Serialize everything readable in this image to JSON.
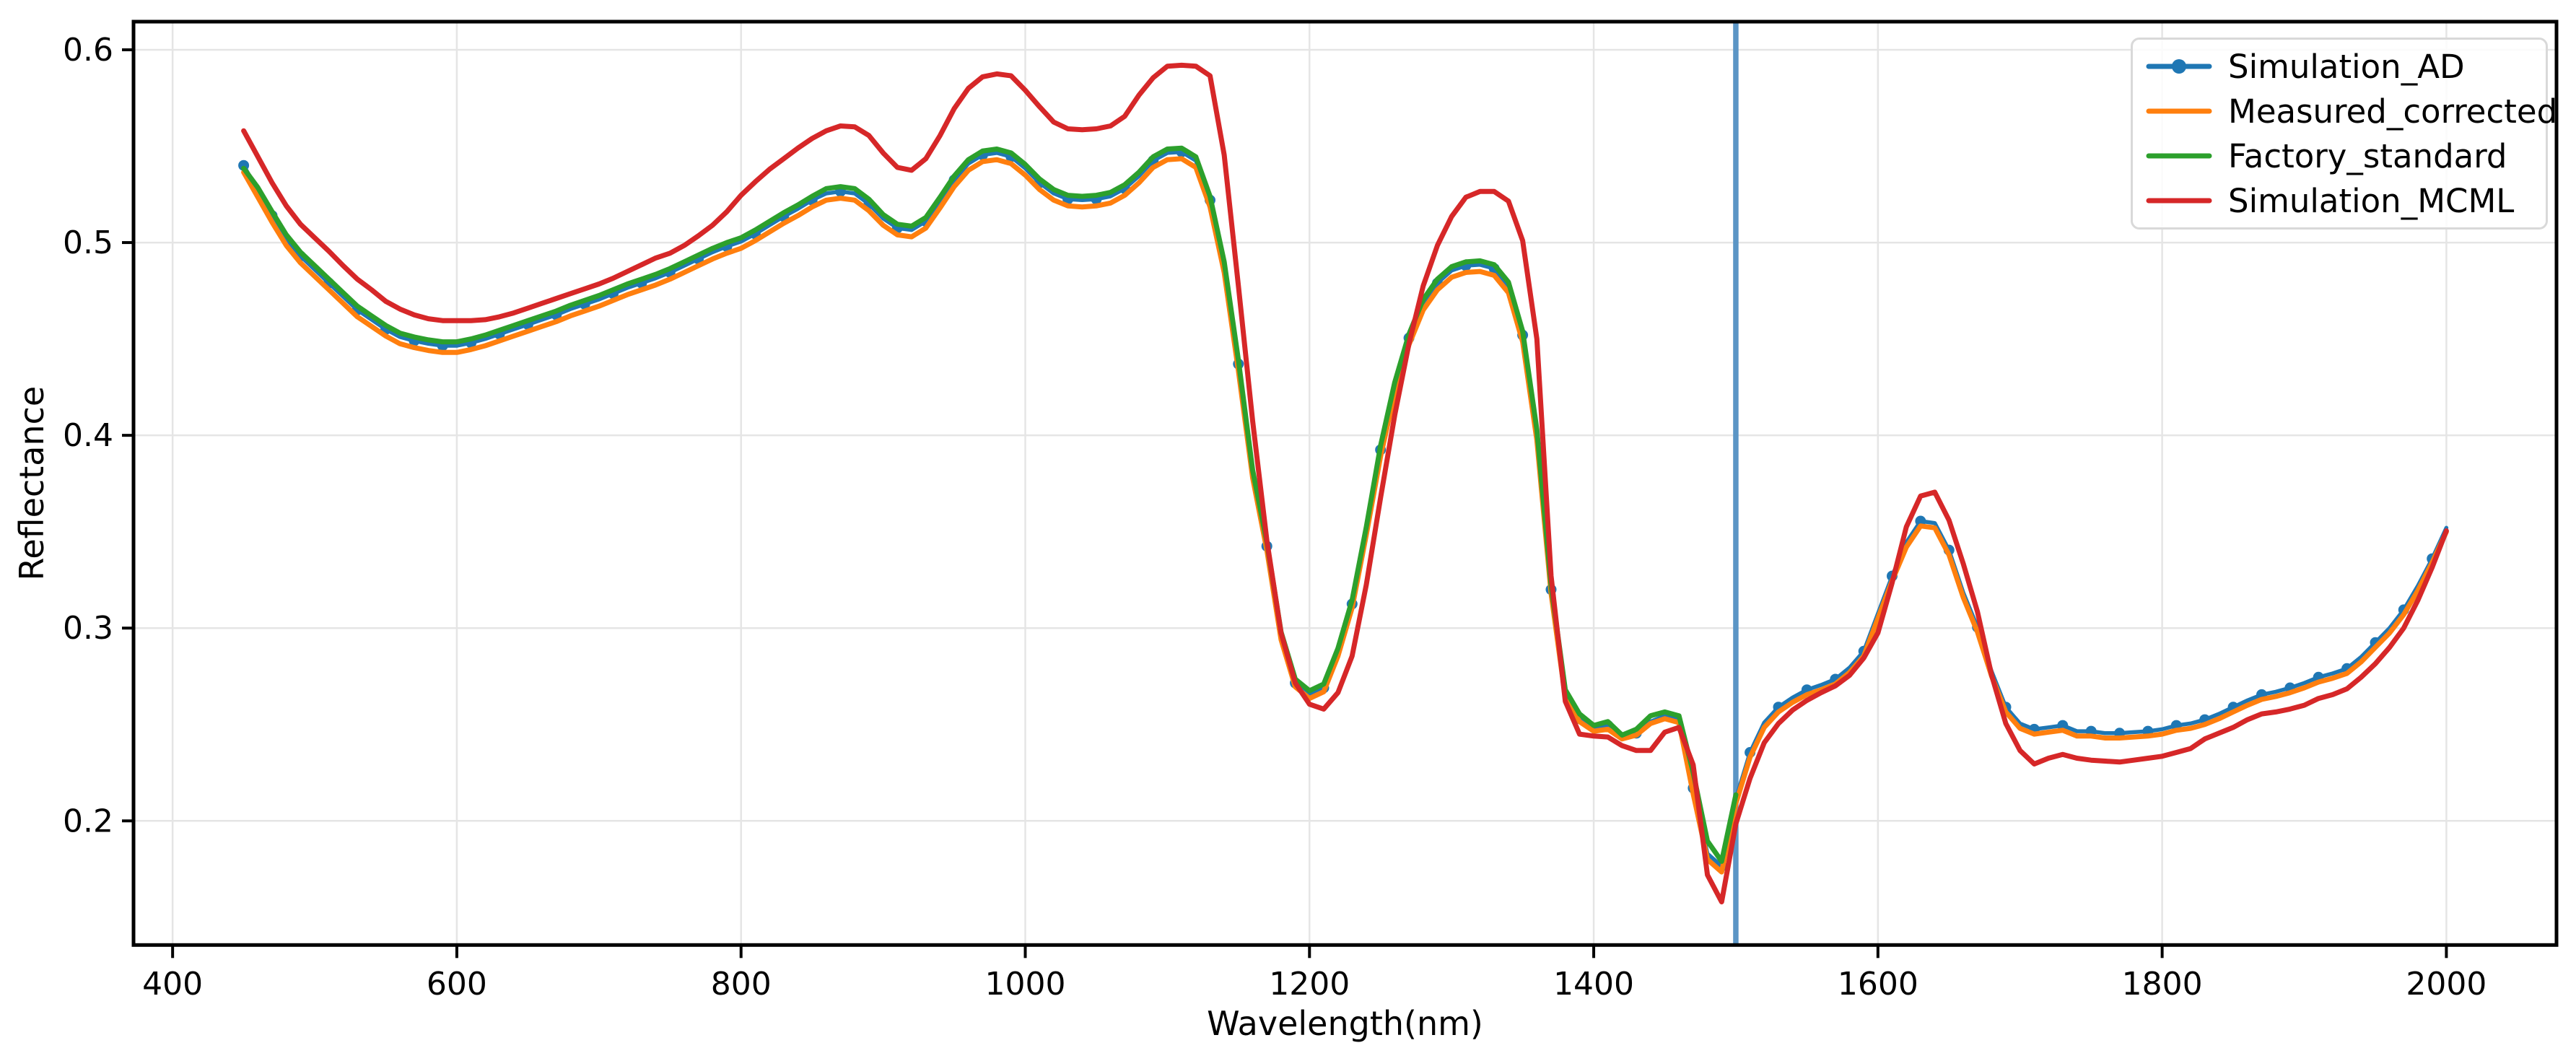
{
  "figure": {
    "background": "#ffffff"
  },
  "axes": {
    "xlabel": "Wavelength(nm)",
    "ylabel": "Reflectance",
    "x_ticks": [
      400,
      600,
      800,
      1000,
      1200,
      1400,
      1600,
      1800,
      2000
    ],
    "y_ticks": [
      "0.2",
      "0.3",
      "0.4",
      "0.5",
      "0.6"
    ],
    "xlim": [
      372.5,
      2077.5
    ],
    "ylim": [
      0.1356,
      0.6146
    ],
    "grid": true,
    "grid_color": "#e5e5e5",
    "spine_color": "#000000",
    "tick_color": "#000000"
  },
  "annotations": {
    "vline": {
      "x": 1500,
      "color": "#5b95c5"
    }
  },
  "chart_data": {
    "type": "line",
    "title": "",
    "xlabel": "Wavelength(nm)",
    "ylabel": "Reflectance",
    "legend_position": "upper right",
    "x": [
      450,
      460,
      470,
      480,
      490,
      500,
      510,
      520,
      530,
      540,
      550,
      560,
      570,
      580,
      590,
      600,
      610,
      620,
      630,
      640,
      650,
      660,
      670,
      680,
      690,
      700,
      710,
      720,
      730,
      740,
      750,
      760,
      770,
      780,
      790,
      800,
      810,
      820,
      830,
      840,
      850,
      860,
      870,
      880,
      890,
      900,
      910,
      920,
      930,
      940,
      950,
      960,
      970,
      980,
      990,
      1000,
      1010,
      1020,
      1030,
      1040,
      1050,
      1060,
      1070,
      1080,
      1090,
      1100,
      1110,
      1120,
      1130,
      1140,
      1150,
      1160,
      1170,
      1180,
      1190,
      1200,
      1210,
      1220,
      1230,
      1240,
      1250,
      1260,
      1270,
      1280,
      1290,
      1300,
      1310,
      1320,
      1330,
      1340,
      1350,
      1360,
      1370,
      1380,
      1390,
      1400,
      1410,
      1420,
      1430,
      1440,
      1450,
      1460,
      1470,
      1480,
      1490,
      1500,
      1510,
      1520,
      1530,
      1540,
      1550,
      1560,
      1570,
      1580,
      1590,
      1600,
      1610,
      1620,
      1630,
      1640,
      1650,
      1660,
      1670,
      1680,
      1690,
      1700,
      1710,
      1720,
      1730,
      1740,
      1750,
      1760,
      1770,
      1780,
      1790,
      1800,
      1810,
      1820,
      1830,
      1840,
      1850,
      1860,
      1870,
      1880,
      1890,
      1900,
      1910,
      1920,
      1930,
      1940,
      1950,
      1960,
      1970,
      1980,
      1990,
      2000
    ],
    "series": [
      {
        "name": "Simulation_AD",
        "color": "#1f77b4",
        "marker": "circle",
        "marker_every_points": 2,
        "values": [
          0.54,
          0.527,
          0.514,
          0.502,
          0.493,
          0.486,
          0.479,
          0.472,
          0.465,
          0.46,
          0.455,
          0.451,
          0.449,
          0.4475,
          0.4465,
          0.4465,
          0.448,
          0.45,
          0.4525,
          0.455,
          0.4575,
          0.46,
          0.4625,
          0.4655,
          0.468,
          0.4705,
          0.4735,
          0.4765,
          0.479,
          0.4815,
          0.4845,
          0.488,
          0.4915,
          0.495,
          0.498,
          0.5005,
          0.5045,
          0.509,
          0.5135,
          0.5175,
          0.522,
          0.5255,
          0.5265,
          0.5255,
          0.52,
          0.5125,
          0.5075,
          0.5065,
          0.511,
          0.5215,
          0.5325,
          0.541,
          0.5455,
          0.5465,
          0.5445,
          0.5385,
          0.531,
          0.5255,
          0.5225,
          0.522,
          0.5225,
          0.524,
          0.528,
          0.5345,
          0.5425,
          0.5465,
          0.547,
          0.5425,
          0.522,
          0.488,
          0.437,
          0.38,
          0.3425,
          0.296,
          0.2715,
          0.2655,
          0.269,
          0.2875,
          0.3125,
          0.3505,
          0.3925,
          0.4255,
          0.4505,
          0.4685,
          0.479,
          0.4855,
          0.488,
          0.4885,
          0.4865,
          0.4775,
          0.452,
          0.401,
          0.32,
          0.266,
          0.253,
          0.2475,
          0.2495,
          0.2435,
          0.2455,
          0.2515,
          0.2545,
          0.2525,
          0.217,
          0.183,
          0.1765,
          0.2115,
          0.2355,
          0.251,
          0.259,
          0.264,
          0.268,
          0.2705,
          0.2735,
          0.2795,
          0.288,
          0.3075,
          0.327,
          0.3445,
          0.3555,
          0.3545,
          0.3405,
          0.3185,
          0.3005,
          0.2775,
          0.259,
          0.2505,
          0.2475,
          0.2485,
          0.2495,
          0.2465,
          0.2465,
          0.2455,
          0.2455,
          0.246,
          0.2465,
          0.2475,
          0.2495,
          0.2505,
          0.2525,
          0.2555,
          0.259,
          0.2625,
          0.2655,
          0.267,
          0.269,
          0.2715,
          0.2745,
          0.2765,
          0.279,
          0.285,
          0.2925,
          0.3,
          0.3095,
          0.322,
          0.336,
          0.352
        ]
      },
      {
        "name": "Measured_corrected",
        "color": "#ff7f0e",
        "marker": "none",
        "values": [
          0.5365,
          0.5235,
          0.5105,
          0.4985,
          0.4895,
          0.4825,
          0.4755,
          0.4685,
          0.4615,
          0.4565,
          0.4515,
          0.4475,
          0.4455,
          0.444,
          0.443,
          0.443,
          0.4445,
          0.4465,
          0.449,
          0.4515,
          0.454,
          0.4565,
          0.459,
          0.462,
          0.4645,
          0.467,
          0.47,
          0.473,
          0.4755,
          0.478,
          0.481,
          0.4845,
          0.488,
          0.4915,
          0.4945,
          0.497,
          0.501,
          0.5055,
          0.51,
          0.514,
          0.5185,
          0.522,
          0.523,
          0.522,
          0.5165,
          0.509,
          0.504,
          0.503,
          0.5075,
          0.518,
          0.529,
          0.5375,
          0.542,
          0.543,
          0.541,
          0.535,
          0.5275,
          0.522,
          0.519,
          0.5185,
          0.519,
          0.5205,
          0.5245,
          0.531,
          0.539,
          0.543,
          0.5435,
          0.539,
          0.5185,
          0.4845,
          0.4335,
          0.378,
          0.3405,
          0.294,
          0.2695,
          0.2635,
          0.267,
          0.2855,
          0.3105,
          0.3485,
          0.389,
          0.422,
          0.447,
          0.465,
          0.4755,
          0.482,
          0.4845,
          0.485,
          0.483,
          0.474,
          0.4485,
          0.3975,
          0.318,
          0.264,
          0.2515,
          0.2465,
          0.2475,
          0.2425,
          0.2445,
          0.2505,
          0.253,
          0.251,
          0.214,
          0.18,
          0.1735,
          0.209,
          0.233,
          0.2485,
          0.2565,
          0.2615,
          0.2655,
          0.268,
          0.271,
          0.277,
          0.2855,
          0.305,
          0.3245,
          0.342,
          0.353,
          0.352,
          0.338,
          0.316,
          0.298,
          0.275,
          0.2565,
          0.248,
          0.245,
          0.246,
          0.247,
          0.244,
          0.244,
          0.243,
          0.243,
          0.2435,
          0.244,
          0.245,
          0.247,
          0.248,
          0.25,
          0.253,
          0.2565,
          0.26,
          0.263,
          0.2645,
          0.2665,
          0.269,
          0.272,
          0.274,
          0.2765,
          0.2825,
          0.29,
          0.2975,
          0.307,
          0.3195,
          0.334,
          0.35
        ]
      },
      {
        "name": "Factory_standard",
        "color": "#2ca02c",
        "marker": "none",
        "values": [
          0.5385,
          0.5285,
          0.516,
          0.504,
          0.495,
          0.488,
          0.481,
          0.474,
          0.467,
          0.462,
          0.457,
          0.453,
          0.451,
          0.4495,
          0.4485,
          0.4485,
          0.45,
          0.452,
          0.4545,
          0.457,
          0.4595,
          0.462,
          0.4645,
          0.4675,
          0.47,
          0.4725,
          0.4755,
          0.4785,
          0.481,
          0.4835,
          0.4865,
          0.49,
          0.4935,
          0.497,
          0.5,
          0.5025,
          0.5065,
          0.511,
          0.5155,
          0.5195,
          0.524,
          0.528,
          0.529,
          0.528,
          0.5225,
          0.5145,
          0.5095,
          0.5085,
          0.513,
          0.5235,
          0.5345,
          0.543,
          0.5475,
          0.5485,
          0.5465,
          0.5405,
          0.533,
          0.5275,
          0.5245,
          0.524,
          0.5245,
          0.526,
          0.53,
          0.5365,
          0.5445,
          0.5485,
          0.549,
          0.5445,
          0.524,
          0.49,
          0.439,
          0.382,
          0.3445,
          0.298,
          0.2735,
          0.2675,
          0.271,
          0.2895,
          0.3145,
          0.3525,
          0.3945,
          0.4275,
          0.4525,
          0.4705,
          0.481,
          0.4875,
          0.49,
          0.4905,
          0.4885,
          0.4795,
          0.454,
          0.403,
          0.322,
          0.268,
          0.2555,
          0.2495,
          0.2515,
          0.2445,
          0.2475,
          0.2545,
          0.2565,
          0.2545,
          0.225,
          0.1895,
          0.179,
          0.2135,
          null,
          null,
          null,
          null,
          null,
          null,
          null,
          null,
          null,
          null,
          null,
          null,
          null,
          null,
          null,
          null,
          null,
          null,
          null,
          null,
          null,
          null,
          null,
          null,
          null,
          null,
          null,
          null,
          null,
          null,
          null,
          null,
          null,
          null,
          null,
          null,
          null,
          null,
          null,
          null,
          null,
          null,
          null,
          null,
          null,
          null,
          null,
          null,
          null,
          null
        ]
      },
      {
        "name": "Simulation_MCML",
        "color": "#d62728",
        "marker": "none",
        "values": [
          0.558,
          0.5445,
          0.531,
          0.519,
          0.5095,
          0.5025,
          0.4955,
          0.488,
          0.481,
          0.4755,
          0.4695,
          0.4655,
          0.4625,
          0.4605,
          0.4595,
          0.4595,
          0.4595,
          0.46,
          0.4615,
          0.4635,
          0.466,
          0.4685,
          0.471,
          0.4735,
          0.476,
          0.4785,
          0.4815,
          0.485,
          0.4885,
          0.492,
          0.4945,
          0.4985,
          0.5035,
          0.509,
          0.516,
          0.5245,
          0.5315,
          0.538,
          0.5435,
          0.549,
          0.554,
          0.558,
          0.5605,
          0.56,
          0.5555,
          0.5465,
          0.539,
          0.5375,
          0.5435,
          0.5555,
          0.5695,
          0.58,
          0.586,
          0.5875,
          0.5865,
          0.579,
          0.5705,
          0.5625,
          0.559,
          0.5585,
          0.559,
          0.5605,
          0.5655,
          0.5765,
          0.5855,
          0.5915,
          0.592,
          0.5915,
          0.5865,
          0.5455,
          0.4775,
          0.4075,
          0.3455,
          0.2975,
          0.2715,
          0.2605,
          0.258,
          0.2665,
          0.2855,
          0.3225,
          0.3675,
          0.4105,
          0.4475,
          0.4775,
          0.4985,
          0.5135,
          0.5235,
          0.5265,
          0.5265,
          0.5215,
          0.501,
          0.45,
          0.327,
          0.262,
          0.245,
          0.244,
          0.2435,
          0.239,
          0.2365,
          0.2365,
          0.246,
          0.2485,
          0.229,
          0.172,
          0.158,
          0.1985,
          0.222,
          0.2405,
          0.2505,
          0.2575,
          0.2625,
          0.2665,
          0.27,
          0.2755,
          0.2845,
          0.2975,
          0.3235,
          0.3525,
          0.3685,
          0.3705,
          0.356,
          0.3335,
          0.3085,
          0.2755,
          0.2505,
          0.2365,
          0.2295,
          0.2325,
          0.2345,
          0.2325,
          0.2315,
          0.231,
          0.2305,
          0.2315,
          0.2325,
          0.2335,
          0.2355,
          0.2375,
          0.2425,
          0.2455,
          0.2485,
          0.2525,
          0.2555,
          0.2565,
          0.258,
          0.26,
          0.2635,
          0.2655,
          0.2685,
          0.2745,
          0.2815,
          0.29,
          0.3,
          0.3145,
          0.3315,
          0.3505
        ]
      }
    ]
  }
}
